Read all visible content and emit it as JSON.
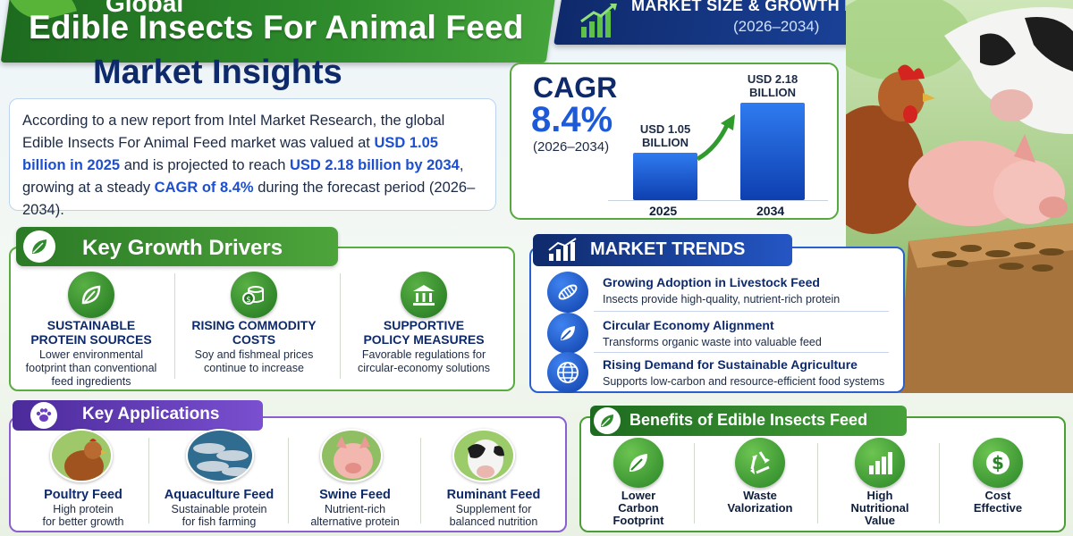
{
  "header": {
    "title_top": "Global",
    "title_line1": "Edible Insects For Animal Feed",
    "title_line2": "Market Insights"
  },
  "forecast_banner": {
    "title": "MARKET SIZE & GROWTH FORECAST",
    "period": "(2026–2034)"
  },
  "intro": {
    "p1": "According to a new report from Intel Market Research, the global Edible Insects For Animal Feed market was valued at ",
    "v1": "USD 1.05 billion in 2025",
    "p2": " and is projected to reach ",
    "v2": "USD 2.18 billion by 2034",
    "p3": ", growing at a steady ",
    "v3": "CAGR of 8.4%",
    "p4": " during the forecast period (2026–2034)."
  },
  "cagr": {
    "label": "CAGR",
    "value": "8.4%",
    "period": "(2026–2034)"
  },
  "chart_data": {
    "type": "bar",
    "categories": [
      "2025",
      "2034"
    ],
    "values": [
      1.05,
      2.18
    ],
    "value_labels": [
      "USD 1.05 BILLION",
      "USD 2.18 BILLION"
    ],
    "ylim": [
      0,
      2.4
    ]
  },
  "drivers": {
    "title": "Key Growth Drivers",
    "items": [
      {
        "title1": "SUSTAINABLE",
        "title2": "PROTEIN SOURCES",
        "d1": "Lower environmental",
        "d2": "footprint than conventional",
        "d3": "feed ingredients"
      },
      {
        "title1": "RISING COMMODITY",
        "title2": "COSTS",
        "d1": "Soy and fishmeal prices",
        "d2": "continue to increase",
        "d3": ""
      },
      {
        "title1": "SUPPORTIVE",
        "title2": "POLICY MEASURES",
        "d1": "Favorable regulations for",
        "d2": "circular-economy solutions",
        "d3": ""
      }
    ]
  },
  "trends": {
    "title": "MARKET TRENDS",
    "items": [
      {
        "title": "Growing Adoption in Livestock Feed",
        "desc": "Insects provide high-quality, nutrient-rich protein"
      },
      {
        "title": "Circular Economy Alignment",
        "desc": "Transforms organic waste into valuable feed"
      },
      {
        "title": "Rising Demand for Sustainable Agriculture",
        "desc": "Supports low-carbon and resource-efficient food systems"
      }
    ]
  },
  "applications": {
    "title": "Key Applications",
    "items": [
      {
        "title": "Poultry Feed",
        "d1": "High protein",
        "d2": "for better growth"
      },
      {
        "title": "Aquaculture Feed",
        "d1": "Sustainable protein",
        "d2": "for fish farming"
      },
      {
        "title": "Swine Feed",
        "d1": "Nutrient-rich",
        "d2": "alternative protein"
      },
      {
        "title": "Ruminant Feed",
        "d1": "Supplement for",
        "d2": "balanced nutrition"
      }
    ]
  },
  "benefits": {
    "title": "Benefits of Edible Insects Feed",
    "items": [
      {
        "l1": "Lower",
        "l2": "Carbon",
        "l3": "Footprint"
      },
      {
        "l1": "Waste",
        "l2": "Valorization",
        "l3": ""
      },
      {
        "l1": "High",
        "l2": "Nutritional",
        "l3": "Value"
      },
      {
        "l1": "Cost",
        "l2": "Effective",
        "l3": ""
      }
    ]
  },
  "colors": {
    "brand_green": "#2e8b2c",
    "brand_navy": "#0f2a6b",
    "accent_blue": "#1d5ad8",
    "apps_purple": "#7a4fd0"
  }
}
